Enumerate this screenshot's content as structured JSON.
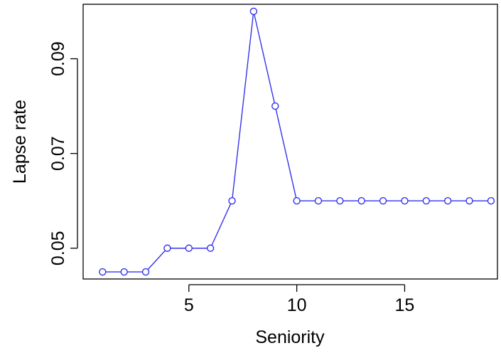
{
  "chart_data": {
    "type": "line",
    "title": "",
    "xlabel": "Seniority",
    "ylabel": "Lapse rate",
    "x": [
      1,
      2,
      3,
      4,
      5,
      6,
      7,
      8,
      9,
      10,
      11,
      12,
      13,
      14,
      15,
      16,
      17,
      18,
      19
    ],
    "series": [
      {
        "values": [
          0.045,
          0.045,
          0.045,
          0.05,
          0.05,
          0.05,
          0.06,
          0.1,
          0.08,
          0.06,
          0.06,
          0.06,
          0.06,
          0.06,
          0.06,
          0.06,
          0.06,
          0.06,
          0.06
        ],
        "color": "#3333ee",
        "marker": "open-circle"
      }
    ],
    "xlim": [
      0.1,
      19.3
    ],
    "ylim": [
      0.0435,
      0.1015
    ],
    "xticks": [
      5,
      10,
      15
    ],
    "yticks": [
      0.05,
      0.07,
      0.09
    ],
    "xtick_labels": [
      "5",
      "10",
      "15"
    ],
    "ytick_labels": [
      "0.05",
      "0.07",
      "0.09"
    ],
    "grid": false,
    "legend": "none"
  }
}
